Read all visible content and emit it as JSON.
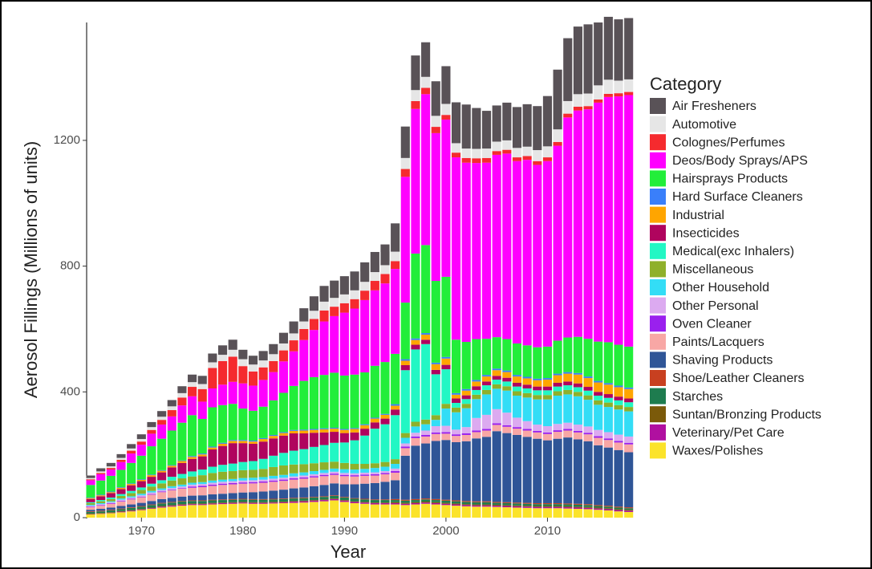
{
  "chart_data": {
    "type": "stacked_bar",
    "x_label": "Year",
    "y_label": "Aerosol Fillings (Millions of units)",
    "legend_title": "Category",
    "x": [
      1965,
      1966,
      1967,
      1968,
      1969,
      1970,
      1971,
      1972,
      1973,
      1974,
      1975,
      1976,
      1977,
      1978,
      1979,
      1980,
      1981,
      1982,
      1983,
      1984,
      1985,
      1986,
      1987,
      1988,
      1989,
      1990,
      1991,
      1992,
      1993,
      1994,
      1995,
      1996,
      1997,
      1998,
      1999,
      2000,
      2001,
      2002,
      2003,
      2004,
      2005,
      2006,
      2007,
      2008,
      2009,
      2010,
      2011,
      2012,
      2013,
      2014,
      2015,
      2016,
      2017,
      2018
    ],
    "xlim": [
      1964.6,
      2018.5
    ],
    "xticks": [
      1970,
      1980,
      1990,
      2000,
      2010
    ],
    "ylim": [
      0,
      1575
    ],
    "yticks": [
      0,
      400,
      800,
      1200
    ],
    "series": [
      {
        "name": "Air Fresheners",
        "color": "#595257",
        "values": [
          8,
          10,
          11,
          12,
          14,
          15,
          16,
          18,
          20,
          22,
          24,
          26,
          28,
          30,
          32,
          30,
          28,
          30,
          32,
          34,
          38,
          42,
          46,
          50,
          55,
          58,
          60,
          62,
          64,
          66,
          90,
          100,
          110,
          110,
          110,
          120,
          130,
          140,
          130,
          120,
          115,
          120,
          130,
          135,
          140,
          160,
          190,
          200,
          215,
          220,
          200,
          200,
          195,
          195
        ]
      },
      {
        "name": "Automotive",
        "color": "#e6e6e6",
        "values": [
          4,
          5,
          5,
          6,
          7,
          8,
          9,
          10,
          12,
          14,
          15,
          16,
          18,
          20,
          22,
          22,
          22,
          22,
          22,
          22,
          22,
          24,
          26,
          28,
          28,
          28,
          28,
          28,
          28,
          28,
          30,
          35,
          35,
          35,
          35,
          35,
          30,
          30,
          30,
          30,
          30,
          30,
          30,
          30,
          35,
          35,
          40,
          40,
          40,
          40,
          45,
          45,
          40,
          40
        ]
      },
      {
        "name": "Colognes/Perfumes",
        "color": "#f52a2e",
        "values": [
          3,
          4,
          5,
          7,
          9,
          10,
          12,
          15,
          20,
          25,
          30,
          40,
          65,
          75,
          80,
          55,
          45,
          40,
          35,
          35,
          35,
          35,
          35,
          35,
          30,
          30,
          30,
          30,
          30,
          30,
          25,
          25,
          25,
          20,
          20,
          15,
          15,
          15,
          15,
          15,
          12,
          12,
          12,
          12,
          12,
          12,
          12,
          12,
          12,
          10,
          10,
          10,
          10,
          10
        ]
      },
      {
        "name": "Deos/Body Sprays/APS",
        "color": "#ff00ff",
        "values": [
          15,
          20,
          20,
          25,
          30,
          35,
          40,
          45,
          45,
          55,
          60,
          55,
          60,
          65,
          70,
          80,
          80,
          85,
          90,
          100,
          110,
          130,
          150,
          170,
          180,
          200,
          210,
          230,
          240,
          250,
          270,
          400,
          460,
          480,
          470,
          500,
          580,
          570,
          560,
          560,
          580,
          590,
          580,
          590,
          580,
          590,
          620,
          700,
          720,
          730,
          760,
          780,
          790,
          800
        ]
      },
      {
        "name": "Hairsprays Products",
        "color": "#22ee3a",
        "values": [
          40,
          45,
          50,
          55,
          65,
          75,
          90,
          100,
          110,
          120,
          130,
          110,
          125,
          120,
          115,
          100,
          95,
          100,
          110,
          125,
          140,
          155,
          165,
          170,
          175,
          170,
          170,
          165,
          165,
          165,
          160,
          180,
          270,
          280,
          260,
          255,
          170,
          150,
          130,
          115,
          100,
          100,
          100,
          100,
          100,
          100,
          105,
          110,
          115,
          120,
          125,
          130,
          130,
          130
        ]
      },
      {
        "name": "Hard Surface Cleaners",
        "color": "#3a7ffa",
        "values": [
          2,
          2,
          2,
          2,
          2,
          2,
          2,
          2,
          2,
          2,
          3,
          3,
          3,
          3,
          3,
          3,
          3,
          3,
          3,
          3,
          3,
          3,
          3,
          3,
          3,
          3,
          3,
          3,
          3,
          3,
          5,
          5,
          5,
          5,
          5,
          5,
          5,
          5,
          5,
          5,
          5,
          5,
          5,
          5,
          5,
          5,
          5,
          5,
          5,
          5,
          5,
          5,
          5,
          5
        ]
      },
      {
        "name": "Industrial",
        "color": "#ffa500",
        "values": [
          3,
          3,
          3,
          4,
          4,
          4,
          5,
          5,
          5,
          6,
          6,
          6,
          6,
          7,
          7,
          7,
          7,
          8,
          8,
          8,
          8,
          9,
          9,
          10,
          10,
          10,
          11,
          11,
          12,
          12,
          12,
          14,
          15,
          16,
          18,
          20,
          12,
          15,
          15,
          16,
          18,
          18,
          20,
          20,
          20,
          22,
          24,
          25,
          28,
          28,
          30,
          30,
          30,
          30
        ]
      },
      {
        "name": "Insecticides",
        "color": "#b0045e",
        "values": [
          10,
          12,
          14,
          16,
          18,
          20,
          22,
          25,
          30,
          35,
          40,
          42,
          55,
          60,
          65,
          60,
          55,
          55,
          55,
          55,
          55,
          50,
          45,
          40,
          35,
          30,
          25,
          22,
          20,
          18,
          18,
          16,
          15,
          14,
          14,
          14,
          14,
          12,
          12,
          12,
          12,
          12,
          12,
          12,
          12,
          12,
          12,
          12,
          12,
          12,
          12,
          12,
          12,
          12
        ]
      },
      {
        "name": "Medical(exc Inhalers)",
        "color": "#22f7c4",
        "values": [
          3,
          4,
          5,
          6,
          7,
          8,
          9,
          10,
          12,
          14,
          16,
          18,
          20,
          22,
          24,
          26,
          28,
          32,
          36,
          40,
          44,
          48,
          52,
          55,
          60,
          65,
          75,
          90,
          110,
          120,
          140,
          200,
          230,
          240,
          130,
          110,
          15,
          15,
          15,
          15,
          15,
          15,
          15,
          15,
          15,
          15,
          15,
          15,
          15,
          15,
          15,
          15,
          15,
          15
        ]
      },
      {
        "name": "Miscellaneous",
        "color": "#8fb02a",
        "values": [
          5,
          6,
          7,
          8,
          10,
          12,
          14,
          16,
          18,
          20,
          20,
          22,
          24,
          25,
          25,
          25,
          25,
          26,
          28,
          30,
          28,
          26,
          25,
          24,
          22,
          20,
          18,
          16,
          15,
          15,
          15,
          15,
          15,
          15,
          15,
          15,
          15,
          14,
          14,
          14,
          14,
          14,
          14,
          14,
          14,
          14,
          14,
          14,
          14,
          14,
          14,
          14,
          14,
          14
        ]
      },
      {
        "name": "Other Household",
        "color": "#33ddf6",
        "values": [
          3,
          3,
          3,
          4,
          4,
          5,
          5,
          5,
          6,
          6,
          6,
          6,
          7,
          7,
          7,
          8,
          8,
          8,
          9,
          9,
          10,
          10,
          10,
          10,
          10,
          12,
          12,
          12,
          14,
          14,
          15,
          18,
          20,
          20,
          20,
          55,
          55,
          60,
          60,
          65,
          65,
          70,
          70,
          75,
          80,
          85,
          90,
          90,
          90,
          85,
          80,
          80,
          80,
          80
        ]
      },
      {
        "name": "Other Personal",
        "color": "#dcaaf0",
        "values": [
          3,
          3,
          3,
          4,
          4,
          4,
          5,
          5,
          5,
          5,
          6,
          6,
          6,
          6,
          6,
          6,
          6,
          6,
          6,
          6,
          6,
          6,
          6,
          6,
          6,
          6,
          6,
          6,
          6,
          6,
          8,
          10,
          12,
          14,
          20,
          20,
          15,
          20,
          40,
          45,
          45,
          40,
          30,
          25,
          20,
          20,
          20,
          20,
          20,
          20,
          20,
          20,
          20,
          20
        ]
      },
      {
        "name": "Oven Cleaner",
        "color": "#9a20ee",
        "values": [
          2,
          2,
          2,
          2,
          2,
          2,
          2,
          2,
          2,
          2,
          4,
          4,
          4,
          4,
          4,
          4,
          4,
          4,
          4,
          4,
          4,
          4,
          4,
          4,
          4,
          4,
          4,
          4,
          4,
          4,
          5,
          5,
          5,
          5,
          5,
          5,
          5,
          5,
          5,
          5,
          5,
          5,
          5,
          5,
          5,
          5,
          5,
          5,
          5,
          5,
          5,
          5,
          5,
          5
        ]
      },
      {
        "name": "Paints/Lacquers",
        "color": "#f8a7a5",
        "values": [
          8,
          10,
          12,
          14,
          16,
          18,
          20,
          22,
          24,
          25,
          25,
          26,
          27,
          28,
          28,
          28,
          28,
          28,
          28,
          28,
          28,
          28,
          28,
          28,
          27,
          26,
          25,
          25,
          24,
          24,
          24,
          24,
          24,
          22,
          22,
          20,
          20,
          20,
          20,
          20,
          20,
          20,
          20,
          20,
          20,
          20,
          22,
          22,
          22,
          22,
          24,
          24,
          24,
          25
        ]
      },
      {
        "name": "Shaving Products",
        "color": "#2f5597",
        "values": [
          5,
          6,
          7,
          8,
          9,
          10,
          11,
          12,
          13,
          14,
          15,
          16,
          17,
          18,
          19,
          20,
          22,
          24,
          26,
          28,
          30,
          32,
          34,
          36,
          38,
          40,
          44,
          48,
          52,
          56,
          60,
          140,
          170,
          175,
          185,
          190,
          185,
          190,
          200,
          205,
          225,
          220,
          215,
          210,
          205,
          200,
          205,
          210,
          205,
          200,
          190,
          185,
          180,
          175
        ]
      },
      {
        "name": "Shoe/Leather Cleaners",
        "color": "#c84020",
        "values": [
          2,
          2,
          2,
          2,
          2,
          2,
          2,
          2,
          2,
          2,
          2,
          2,
          2,
          2,
          2,
          2,
          2,
          2,
          2,
          2,
          2,
          2,
          2,
          2,
          2,
          2,
          2,
          2,
          2,
          2,
          3,
          3,
          3,
          3,
          3,
          3,
          3,
          3,
          3,
          3,
          3,
          3,
          3,
          3,
          3,
          3,
          3,
          3,
          3,
          3,
          3,
          3,
          3,
          3
        ]
      },
      {
        "name": "Starches",
        "color": "#1e7c4f",
        "values": [
          5,
          5,
          6,
          6,
          7,
          7,
          8,
          8,
          8,
          8,
          8,
          8,
          8,
          8,
          8,
          8,
          8,
          8,
          8,
          8,
          8,
          8,
          8,
          8,
          8,
          8,
          8,
          8,
          8,
          8,
          7,
          7,
          7,
          7,
          7,
          7,
          7,
          7,
          7,
          7,
          6,
          6,
          6,
          6,
          6,
          6,
          6,
          6,
          6,
          6,
          5,
          5,
          5,
          5
        ]
      },
      {
        "name": "Suntan/Bronzing Products",
        "color": "#7b5a0a",
        "values": [
          2,
          2,
          2,
          2,
          2,
          2,
          2,
          2,
          2,
          2,
          2,
          2,
          2,
          2,
          2,
          2,
          2,
          2,
          2,
          2,
          2,
          2,
          2,
          2,
          2,
          2,
          2,
          2,
          2,
          2,
          3,
          3,
          3,
          3,
          3,
          3,
          3,
          3,
          3,
          3,
          3,
          3,
          3,
          3,
          3,
          3,
          3,
          3,
          3,
          3,
          3,
          3,
          3,
          3
        ]
      },
      {
        "name": "Veterinary/Pet Care",
        "color": "#b010a0",
        "values": [
          1,
          1,
          1,
          2,
          2,
          2,
          2,
          3,
          3,
          3,
          3,
          3,
          3,
          3,
          3,
          3,
          3,
          3,
          3,
          3,
          4,
          4,
          4,
          4,
          4,
          4,
          4,
          4,
          4,
          4,
          4,
          4,
          4,
          4,
          4,
          4,
          4,
          4,
          4,
          4,
          4,
          4,
          4,
          4,
          4,
          4,
          4,
          4,
          4,
          4,
          4,
          4,
          4,
          4
        ]
      },
      {
        "name": "Waxes/Polishes",
        "color": "#fbe32a",
        "values": [
          10,
          12,
          14,
          17,
          20,
          24,
          28,
          32,
          35,
          38,
          40,
          40,
          42,
          43,
          44,
          45,
          44,
          44,
          45,
          46,
          47,
          48,
          50,
          52,
          55,
          50,
          46,
          44,
          42,
          42,
          42,
          40,
          42,
          44,
          42,
          40,
          38,
          36,
          35,
          35,
          34,
          33,
          32,
          31,
          30,
          30,
          30,
          29,
          28,
          27,
          25,
          23,
          20,
          18
        ]
      }
    ]
  }
}
